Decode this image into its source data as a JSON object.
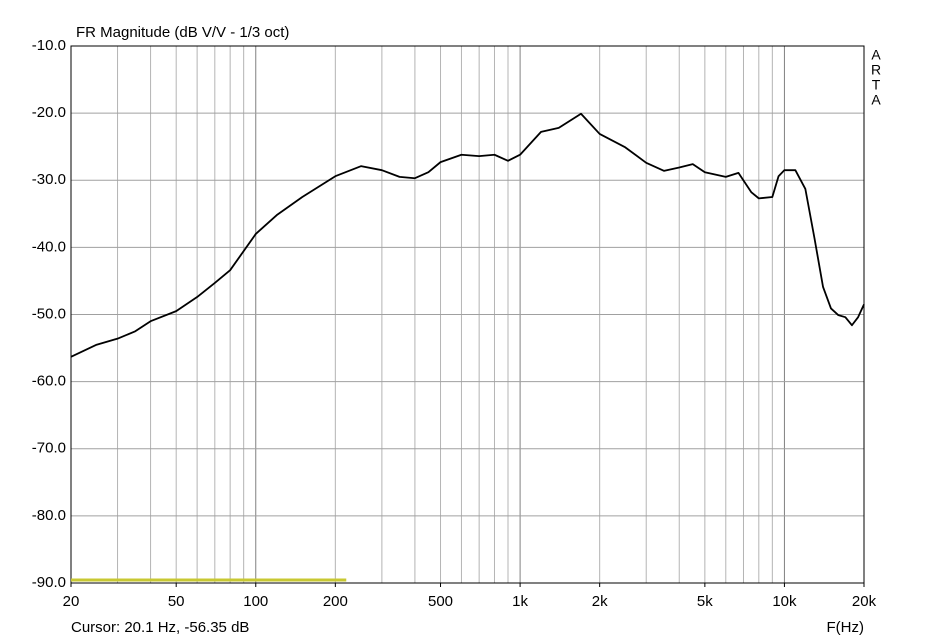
{
  "chart_data": {
    "type": "line",
    "title": "FR Magnitude (dB V/V - 1/3 oct)",
    "brand": [
      "A",
      "R",
      "T",
      "A"
    ],
    "cursor": "Cursor: 20.1 Hz, -56.35 dB",
    "x_label": "F(Hz)",
    "x_scale": "log",
    "grid": true,
    "minor_grid": true,
    "xlim": [
      20,
      20000
    ],
    "ylim": [
      -90,
      -10
    ],
    "xticks": [
      20,
      50,
      100,
      200,
      500,
      {
        "value": 1000,
        "label": "1k"
      },
      {
        "value": 2000,
        "label": "2k"
      },
      {
        "value": 5000,
        "label": "5k"
      },
      {
        "value": 10000,
        "label": "10k"
      },
      {
        "value": 20000,
        "label": "20k"
      }
    ],
    "yticks": [
      {
        "value": -10,
        "label": "-10.0"
      },
      {
        "value": -20,
        "label": "-20.0"
      },
      {
        "value": -30,
        "label": "-30.0"
      },
      {
        "value": -40,
        "label": "-40.0"
      },
      {
        "value": -50,
        "label": "-50.0"
      },
      {
        "value": -60,
        "label": "-60.0"
      },
      {
        "value": -70,
        "label": "-70.0"
      },
      {
        "value": -80,
        "label": "-80.0"
      },
      {
        "value": -90,
        "label": "-90.0"
      }
    ],
    "range_marker": {
      "x": [
        20,
        220
      ],
      "color": "#c8c832"
    },
    "series": [
      {
        "color": "#000000",
        "x": [
          20,
          25,
          30,
          35,
          40,
          50,
          60,
          70,
          80,
          100,
          120,
          150,
          200,
          250,
          300,
          350,
          400,
          450,
          500,
          600,
          700,
          800,
          900,
          1000,
          1200,
          1400,
          1700,
          2000,
          2500,
          3000,
          3500,
          4000,
          4500,
          5000,
          6000,
          6700,
          7500,
          8000,
          9000,
          9500,
          10000,
          11000,
          12000,
          13000,
          14000,
          15000,
          16000,
          17000,
          18000,
          19000,
          20000
        ],
        "values": [
          -56.3,
          -54.5,
          -53.6,
          -52.5,
          -51.0,
          -49.5,
          -47.4,
          -45.3,
          -43.4,
          -38.0,
          -35.2,
          -32.5,
          -29.4,
          -27.9,
          -28.5,
          -29.5,
          -29.7,
          -28.8,
          -27.3,
          -26.2,
          -26.4,
          -26.2,
          -27.1,
          -26.2,
          -22.8,
          -22.2,
          -20.1,
          -23.1,
          -25.1,
          -27.4,
          -28.6,
          -28.1,
          -27.6,
          -28.8,
          -29.5,
          -28.9,
          -31.8,
          -32.7,
          -32.5,
          -29.4,
          -28.5,
          -28.5,
          -31.3,
          -38.7,
          -45.9,
          -49.1,
          -50.1,
          -50.4,
          -51.6,
          -50.4,
          -48.5
        ]
      }
    ]
  }
}
